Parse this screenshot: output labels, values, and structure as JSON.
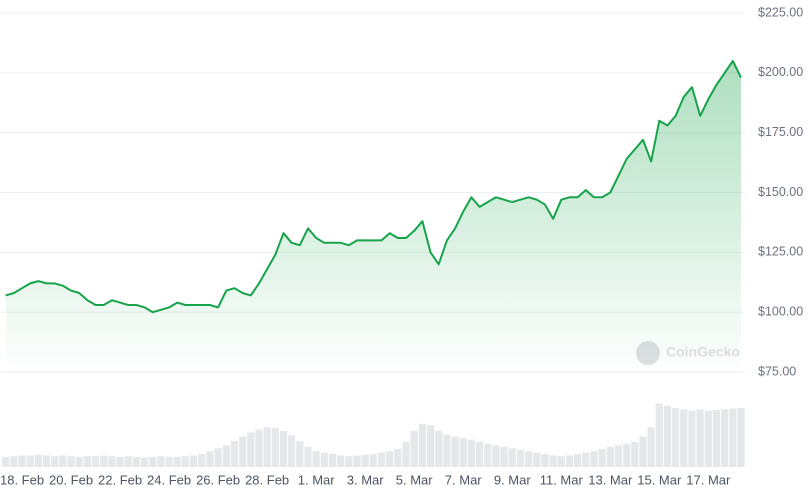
{
  "chart_data": {
    "type": "line",
    "categories": [
      null,
      null,
      "18. Feb",
      null,
      null,
      null,
      null,
      null,
      "20. Feb",
      null,
      null,
      null,
      null,
      null,
      "22. Feb",
      null,
      null,
      null,
      null,
      null,
      "24. Feb",
      null,
      null,
      null,
      null,
      null,
      "26. Feb",
      null,
      null,
      null,
      null,
      null,
      "28. Feb",
      null,
      null,
      null,
      null,
      null,
      "1. Mar",
      null,
      null,
      null,
      null,
      null,
      "3. Mar",
      null,
      null,
      null,
      null,
      null,
      "5. Mar",
      null,
      null,
      null,
      null,
      null,
      "7. Mar",
      null,
      null,
      null,
      null,
      null,
      "9. Mar",
      null,
      null,
      null,
      null,
      null,
      "11. Mar",
      null,
      null,
      null,
      null,
      null,
      "13. Mar",
      null,
      null,
      null,
      null,
      null,
      "15. Mar",
      null,
      null,
      null,
      null,
      null,
      "17. Mar",
      null,
      null,
      null,
      null
    ],
    "series": [
      {
        "color": "#16a34a",
        "values": [
          107,
          108,
          110,
          112,
          113,
          112,
          112,
          111,
          109,
          108,
          105,
          103,
          103,
          105,
          104,
          103,
          103,
          102,
          100,
          101,
          102,
          104,
          103,
          103,
          103,
          103,
          102,
          109,
          110,
          108,
          107,
          112,
          118,
          124,
          133,
          129,
          128,
          135,
          131,
          129,
          129,
          129,
          128,
          130,
          130,
          130,
          130,
          133,
          131,
          131,
          134,
          138,
          125,
          120,
          130,
          135,
          142,
          148,
          144,
          146,
          148,
          147,
          146,
          147,
          148,
          147,
          145,
          139,
          147,
          148,
          148,
          151,
          148,
          148,
          150,
          157,
          164,
          168,
          172,
          163,
          180,
          178,
          182,
          190,
          194,
          182,
          189,
          195,
          200,
          205,
          198
        ]
      }
    ],
    "ylim": [
      75,
      225
    ],
    "yticks": [
      {
        "value": 75,
        "label": "$75.00"
      },
      {
        "value": 100,
        "label": "$100.00"
      },
      {
        "value": 125,
        "label": "$125.00"
      },
      {
        "value": 150,
        "label": "$150.00"
      },
      {
        "value": 175,
        "label": "$175.00"
      },
      {
        "value": 200,
        "label": "$200.00"
      },
      {
        "value": 225,
        "label": "$225.00"
      }
    ],
    "grid": true,
    "volume": {
      "type": "bar",
      "color": "#e5e7eb",
      "ylim": [
        0,
        100
      ],
      "values": [
        14,
        15,
        16,
        16,
        17,
        16,
        15,
        16,
        15,
        14,
        15,
        15,
        16,
        15,
        14,
        15,
        14,
        13,
        14,
        15,
        14,
        14,
        15,
        16,
        18,
        22,
        26,
        30,
        36,
        42,
        48,
        52,
        55,
        54,
        50,
        44,
        36,
        28,
        22,
        20,
        18,
        16,
        15,
        16,
        17,
        18,
        20,
        22,
        25,
        35,
        50,
        60,
        58,
        50,
        45,
        42,
        40,
        38,
        35,
        32,
        30,
        28,
        26,
        24,
        22,
        20,
        18,
        16,
        15,
        16,
        18,
        20,
        22,
        25,
        28,
        30,
        32,
        35,
        42,
        55,
        88,
        85,
        82,
        80,
        78,
        80,
        78,
        79,
        80,
        81,
        82
      ]
    },
    "watermark": "CoinGecko"
  }
}
